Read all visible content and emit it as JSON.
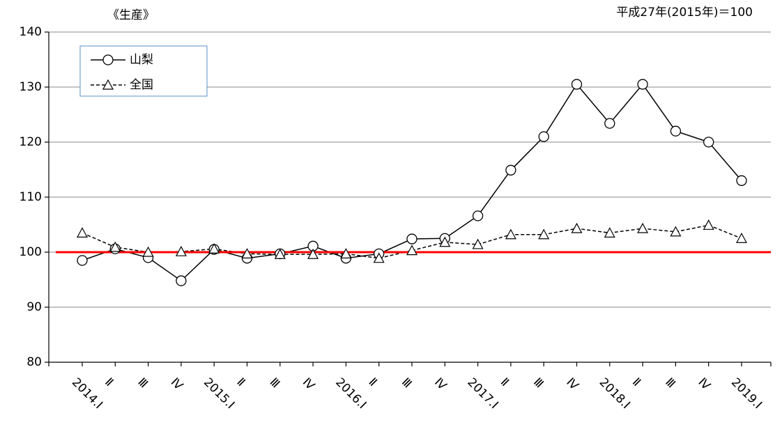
{
  "chart_data": {
    "type": "line",
    "title": "《生産》",
    "subtitle": "平成27年(2015年)＝100",
    "categories": [
      "2014.Ⅰ",
      "Ⅱ",
      "Ⅲ",
      "Ⅳ",
      "2015.Ⅰ",
      "Ⅱ",
      "Ⅲ",
      "Ⅳ",
      "2016.Ⅰ",
      "Ⅱ",
      "Ⅲ",
      "Ⅳ",
      "2017.Ⅰ",
      "Ⅱ",
      "Ⅲ",
      "Ⅳ",
      "2018.Ⅰ",
      "Ⅱ",
      "Ⅲ",
      "Ⅳ",
      "2019.Ⅰ"
    ],
    "series": [
      {
        "name": "山梨",
        "color": "#000000",
        "marker": "circle",
        "dash": "solid",
        "values": [
          98.5,
          100.6,
          99.0,
          94.8,
          100.5,
          98.9,
          99.7,
          101.1,
          98.9,
          99.7,
          102.4,
          102.5,
          106.6,
          114.9,
          121.0,
          130.5,
          123.4,
          130.5,
          122.0,
          120.0,
          113.0
        ]
      },
      {
        "name": "全国",
        "color": "#000000",
        "marker": "triangle",
        "dash": "dashed",
        "values": [
          103.5,
          100.9,
          100.0,
          100.1,
          100.6,
          99.7,
          99.6,
          99.6,
          99.7,
          98.9,
          100.3,
          101.8,
          101.4,
          103.2,
          103.2,
          104.3,
          103.5,
          104.3,
          103.7,
          104.9,
          102.5
        ]
      }
    ],
    "reference_line": 100,
    "reference_color": "#ff0000",
    "ylim": [
      80,
      140
    ],
    "yticks": [
      80,
      90,
      100,
      110,
      120,
      130,
      140
    ],
    "grid": true,
    "legend": "top-left"
  }
}
